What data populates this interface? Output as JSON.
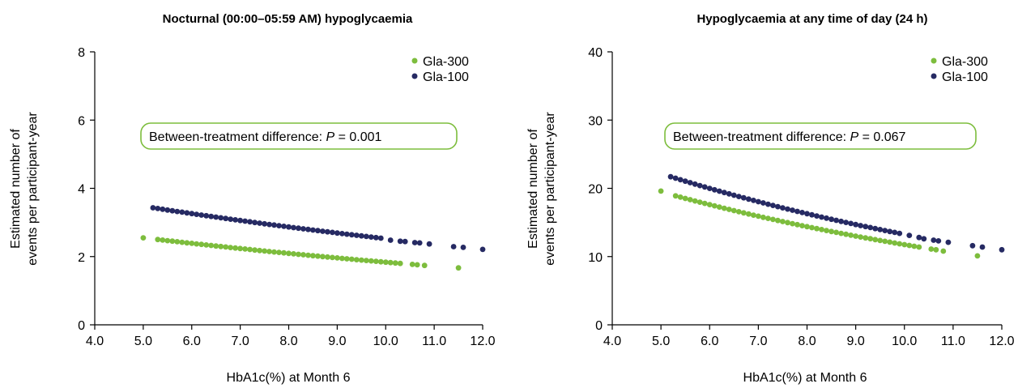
{
  "colors": {
    "gla300": "#7dbd3d",
    "gla100": "#262a63",
    "axis": "#000000"
  },
  "chart_data": [
    {
      "type": "scatter",
      "title": "Nocturnal (00:00–05:59 AM) hypoglycaemia",
      "xlabel": "HbA1c(%) at Month 6",
      "ylabel_line1": "Estimated number of",
      "ylabel_line2": "events per participant-year",
      "xlim": [
        4.0,
        12.0
      ],
      "ylim": [
        0,
        8
      ],
      "xticks": [
        "4.0",
        "5.0",
        "6.0",
        "7.0",
        "8.0",
        "9.0",
        "10.0",
        "11.0",
        "12.0"
      ],
      "yticks": [
        "0",
        "2",
        "4",
        "6",
        "8"
      ],
      "legend_position": "top-right",
      "annotation_prefix": "Between-treatment difference: ",
      "annotation_p": "P",
      "annotation_suffix": " = 0.001",
      "series": [
        {
          "name": "Gla-300",
          "color_key": "gla300",
          "dense_range": [
            5.3,
            10.3
          ],
          "y_start": 2.5,
          "y_end": 1.8,
          "extra_points": [
            [
              5.0,
              2.55
            ],
            [
              10.55,
              1.77
            ],
            [
              10.65,
              1.76
            ],
            [
              10.8,
              1.74
            ],
            [
              11.5,
              1.67
            ]
          ]
        },
        {
          "name": "Gla-100",
          "color_key": "gla100",
          "dense_range": [
            5.2,
            9.9
          ],
          "y_start": 3.43,
          "y_end": 2.54,
          "extra_points": [
            [
              10.1,
              2.48
            ],
            [
              10.3,
              2.45
            ],
            [
              10.4,
              2.44
            ],
            [
              10.6,
              2.41
            ],
            [
              10.7,
              2.4
            ],
            [
              10.9,
              2.37
            ],
            [
              11.4,
              2.29
            ],
            [
              11.6,
              2.27
            ],
            [
              12.0,
              2.21
            ]
          ]
        }
      ]
    },
    {
      "type": "scatter",
      "title": "Hypoglycaemia at any time of day (24 h)",
      "xlabel": "HbA1c(%) at Month 6",
      "ylabel_line1": "Estimated number of",
      "ylabel_line2": "events per participant-year",
      "xlim": [
        4.0,
        12.0
      ],
      "ylim": [
        0,
        40
      ],
      "xticks": [
        "4.0",
        "5.0",
        "6.0",
        "7.0",
        "8.0",
        "9.0",
        "10.0",
        "11.0",
        "12.0"
      ],
      "yticks": [
        "0",
        "10",
        "20",
        "30",
        "40"
      ],
      "legend_position": "top-right",
      "annotation_prefix": "Between-treatment difference: ",
      "annotation_p": "P",
      "annotation_suffix": " = 0.067",
      "series": [
        {
          "name": "Gla-300",
          "color_key": "gla300",
          "dense_range": [
            5.3,
            10.3
          ],
          "y_start": 18.9,
          "y_end": 11.4,
          "extra_points": [
            [
              5.0,
              19.6
            ],
            [
              10.55,
              11.1
            ],
            [
              10.65,
              11.0
            ],
            [
              10.8,
              10.8
            ],
            [
              11.5,
              10.1
            ]
          ]
        },
        {
          "name": "Gla-100",
          "color_key": "gla100",
          "dense_range": [
            5.2,
            9.9
          ],
          "y_start": 21.7,
          "y_end": 13.4,
          "extra_points": [
            [
              10.1,
              13.1
            ],
            [
              10.3,
              12.8
            ],
            [
              10.4,
              12.6
            ],
            [
              10.6,
              12.4
            ],
            [
              10.7,
              12.3
            ],
            [
              10.9,
              12.1
            ],
            [
              11.4,
              11.6
            ],
            [
              11.6,
              11.4
            ],
            [
              12.0,
              11.0
            ]
          ]
        }
      ]
    }
  ]
}
